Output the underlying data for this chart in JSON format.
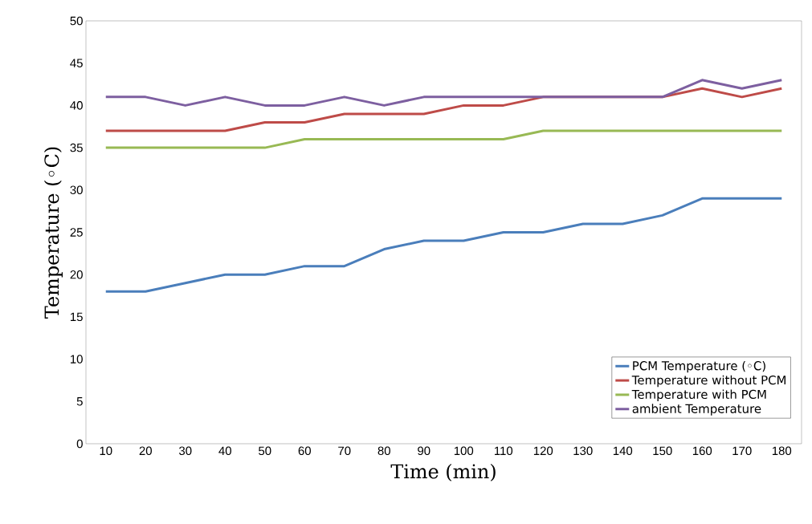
{
  "chart_data": {
    "type": "line",
    "xlabel": "Time (min)",
    "ylabel": "Temperature (◦C)",
    "categories": [
      "10",
      "20",
      "30",
      "40",
      "50",
      "60",
      "70",
      "80",
      "90",
      "100",
      "110",
      "120",
      "130",
      "140",
      "150",
      "160",
      "170",
      "180"
    ],
    "series": [
      {
        "name": "PCM Temperature (◦C)",
        "color": "#4a7ebb",
        "values": [
          18,
          18,
          19,
          20,
          20,
          21,
          21,
          23,
          24,
          24,
          25,
          25,
          26,
          26,
          27,
          29,
          29,
          29
        ]
      },
      {
        "name": "Temperature without PCM",
        "color": "#be4b48",
        "values": [
          37,
          37,
          37,
          37,
          38,
          38,
          39,
          39,
          39,
          40,
          40,
          41,
          41,
          41,
          41,
          42,
          41,
          42
        ]
      },
      {
        "name": "Temperature with PCM",
        "color": "#98b954",
        "values": [
          35,
          35,
          35,
          35,
          35,
          36,
          36,
          36,
          36,
          36,
          36,
          37,
          37,
          37,
          37,
          37,
          37,
          37
        ]
      },
      {
        "name": "ambient Temperature",
        "color": "#7d5fa0",
        "values": [
          41,
          41,
          40,
          41,
          40,
          40,
          41,
          40,
          41,
          41,
          41,
          41,
          41,
          41,
          41,
          43,
          42,
          43
        ]
      }
    ],
    "ylim": [
      0,
      50
    ],
    "yticks": [
      0,
      5,
      10,
      15,
      20,
      25,
      30,
      35,
      40,
      45,
      50
    ],
    "grid": false,
    "legend": "bottom right",
    "marker": "none",
    "line_style": "solid"
  }
}
